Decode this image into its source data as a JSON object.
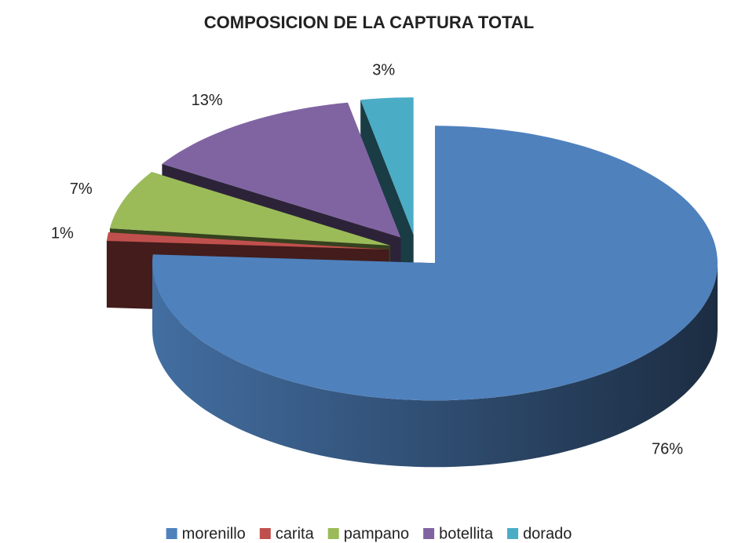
{
  "chart_data": {
    "type": "pie",
    "title": "COMPOSICION DE LA CAPTURA TOTAL",
    "categories": [
      "morenillo",
      "carita",
      "pampano",
      "botellita",
      "dorado"
    ],
    "values": [
      76,
      1,
      7,
      13,
      3
    ],
    "value_labels": [
      "76%",
      "1%",
      "7%",
      "13%",
      "3%"
    ],
    "colors": [
      "#4f81bd",
      "#c0504d",
      "#9bbb59",
      "#8064a2",
      "#4bacc6"
    ],
    "legend": "bottom"
  }
}
